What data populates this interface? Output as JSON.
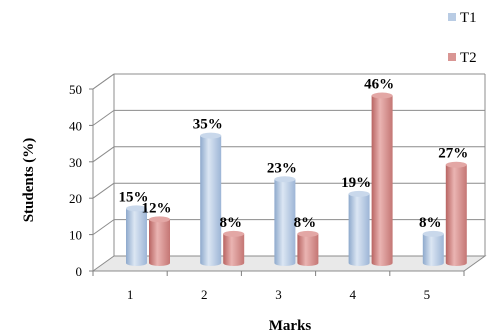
{
  "chart_data": {
    "type": "bar",
    "categories": [
      "1",
      "2",
      "3",
      "4",
      "5"
    ],
    "series": [
      {
        "name": "T1",
        "values": [
          15,
          35,
          23,
          19,
          8
        ],
        "labels": [
          "15%",
          "35%",
          "23%",
          "19%",
          "8%"
        ],
        "color": "#b9cce4"
      },
      {
        "name": "T2",
        "values": [
          12,
          8,
          8,
          46,
          27
        ],
        "labels": [
          "12%",
          "8%",
          "8%",
          "46%",
          "27%"
        ],
        "color": "#d99694"
      }
    ],
    "xlabel": "Marks",
    "ylabel": "Students (%)",
    "ylim": [
      0,
      50
    ],
    "yticks": [
      "0",
      "10",
      "20",
      "30",
      "40",
      "50"
    ],
    "grid": true,
    "legend_position": "top-right",
    "style": "3d-cylinder"
  }
}
